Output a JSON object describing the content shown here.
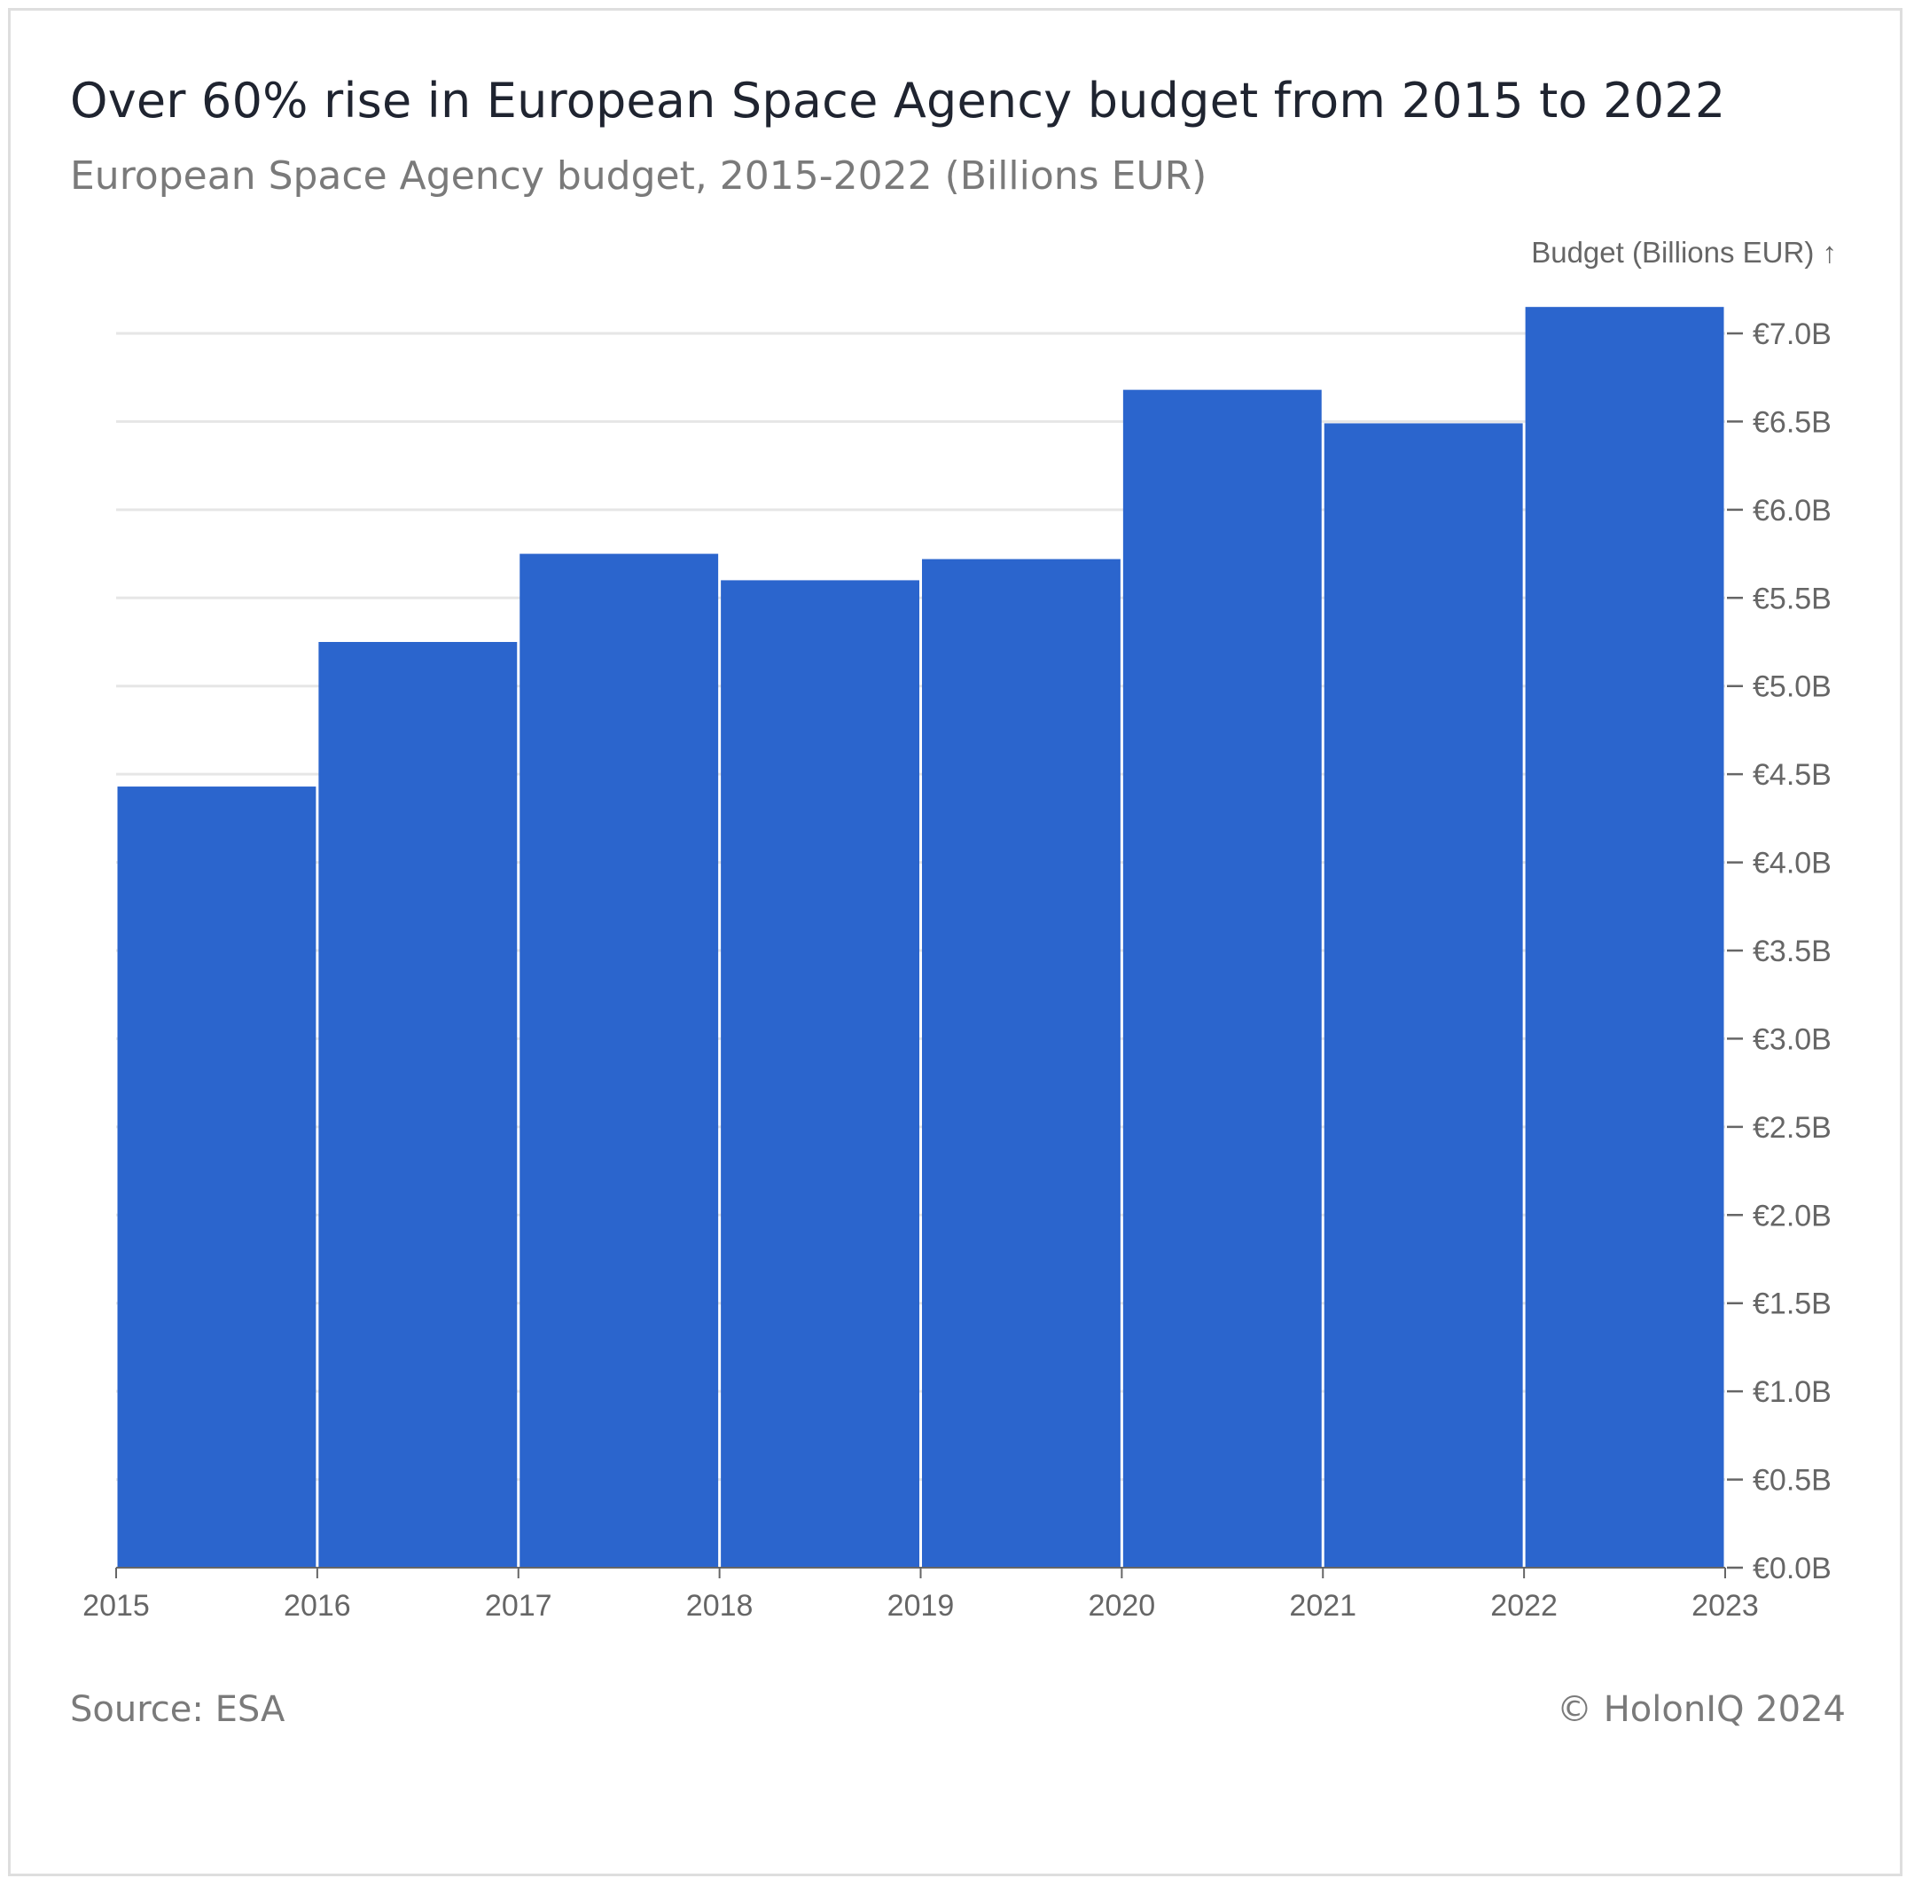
{
  "header": {
    "title": "Over 60% rise in European Space Agency budget from 2015 to 2022",
    "subtitle": "European Space Agency budget, 2015-2022 (Billions EUR)"
  },
  "footer": {
    "source": "Source: ESA",
    "credit": "© HolonIQ 2024"
  },
  "colors": {
    "bar": "#2b65cd",
    "grid": "#e6e6e6",
    "axis": "#666666"
  },
  "chart_data": {
    "type": "bar",
    "title": "Over 60% rise in European Space Agency budget from 2015 to 2022",
    "subtitle": "European Space Agency budget, 2015-2022 (Billions EUR)",
    "xlabel": "",
    "ylabel": "Budget (Billions EUR) ↑",
    "x_ticks": [
      "2015",
      "2016",
      "2017",
      "2018",
      "2019",
      "2020",
      "2021",
      "2022",
      "2023"
    ],
    "bins": [
      {
        "start": 2015,
        "end": 2016,
        "value": 4.43
      },
      {
        "start": 2016,
        "end": 2017,
        "value": 5.25
      },
      {
        "start": 2017,
        "end": 2018,
        "value": 5.75
      },
      {
        "start": 2018,
        "end": 2019,
        "value": 5.6
      },
      {
        "start": 2019,
        "end": 2020,
        "value": 5.72
      },
      {
        "start": 2020,
        "end": 2021,
        "value": 6.68
      },
      {
        "start": 2021,
        "end": 2022,
        "value": 6.49
      },
      {
        "start": 2022,
        "end": 2023,
        "value": 7.15
      }
    ],
    "ylim": [
      0,
      7
    ],
    "y_ticks": [
      {
        "value": 0,
        "label": "€0.0B"
      },
      {
        "value": 0.5,
        "label": "€0.5B"
      },
      {
        "value": 1,
        "label": "€1.0B"
      },
      {
        "value": 1.5,
        "label": "€1.5B"
      },
      {
        "value": 2,
        "label": "€2.0B"
      },
      {
        "value": 2.5,
        "label": "€2.5B"
      },
      {
        "value": 3,
        "label": "€3.0B"
      },
      {
        "value": 3.5,
        "label": "€3.5B"
      },
      {
        "value": 4,
        "label": "€4.0B"
      },
      {
        "value": 4.5,
        "label": "€4.5B"
      },
      {
        "value": 5,
        "label": "€5.0B"
      },
      {
        "value": 5.5,
        "label": "€5.5B"
      },
      {
        "value": 6,
        "label": "€6.0B"
      },
      {
        "value": 6.5,
        "label": "€6.5B"
      },
      {
        "value": 7,
        "label": "€7.0B"
      }
    ],
    "y_axis_position": "right",
    "grid": true,
    "legend": "none"
  }
}
